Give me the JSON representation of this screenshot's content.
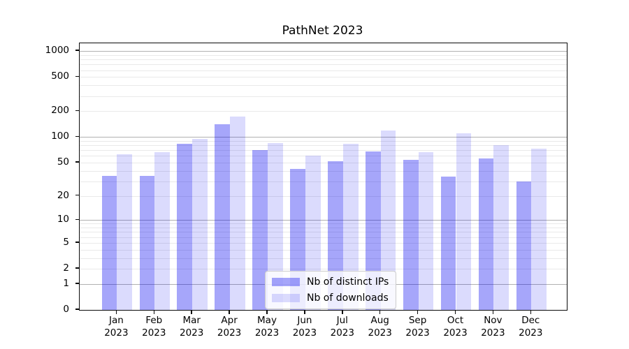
{
  "title": "PathNet 2023",
  "chart_data": {
    "type": "bar",
    "title": "PathNet 2023",
    "categories": [
      "Jan\n2023",
      "Feb\n2023",
      "Mar\n2023",
      "Apr\n2023",
      "May\n2023",
      "Jun\n2023",
      "Jul\n2023",
      "Aug\n2023",
      "Sep\n2023",
      "Oct\n2023",
      "Nov\n2023",
      "Dec\n2023"
    ],
    "series": [
      {
        "name": "Nb of distinct IPs",
        "color": "rgba(0,0,240,0.35)",
        "values": [
          35,
          35,
          83,
          140,
          70,
          42,
          52,
          68,
          54,
          34,
          56,
          30
        ]
      },
      {
        "name": "Nb of downloads",
        "color": "rgba(0,0,240,0.14)",
        "values": [
          63,
          66,
          95,
          175,
          85,
          60,
          83,
          120,
          67,
          110,
          80,
          73
        ]
      }
    ],
    "xlabel": "",
    "ylabel": "",
    "yscale": "log1p",
    "ylim": [
      0,
      1232
    ],
    "y_ticks": [
      0,
      1,
      2,
      5,
      10,
      20,
      50,
      100,
      200,
      500,
      1000
    ],
    "grid": {
      "major_lines": [
        1,
        10,
        100,
        1000
      ],
      "minor_lines": [
        2,
        3,
        4,
        5,
        6,
        7,
        8,
        9,
        20,
        30,
        40,
        50,
        60,
        70,
        80,
        90,
        200,
        300,
        400,
        500,
        600,
        700,
        800,
        900
      ],
      "major_color": "#b0b0b0",
      "minor_color": "#e9e9e9"
    },
    "legend_position": "lower center"
  }
}
